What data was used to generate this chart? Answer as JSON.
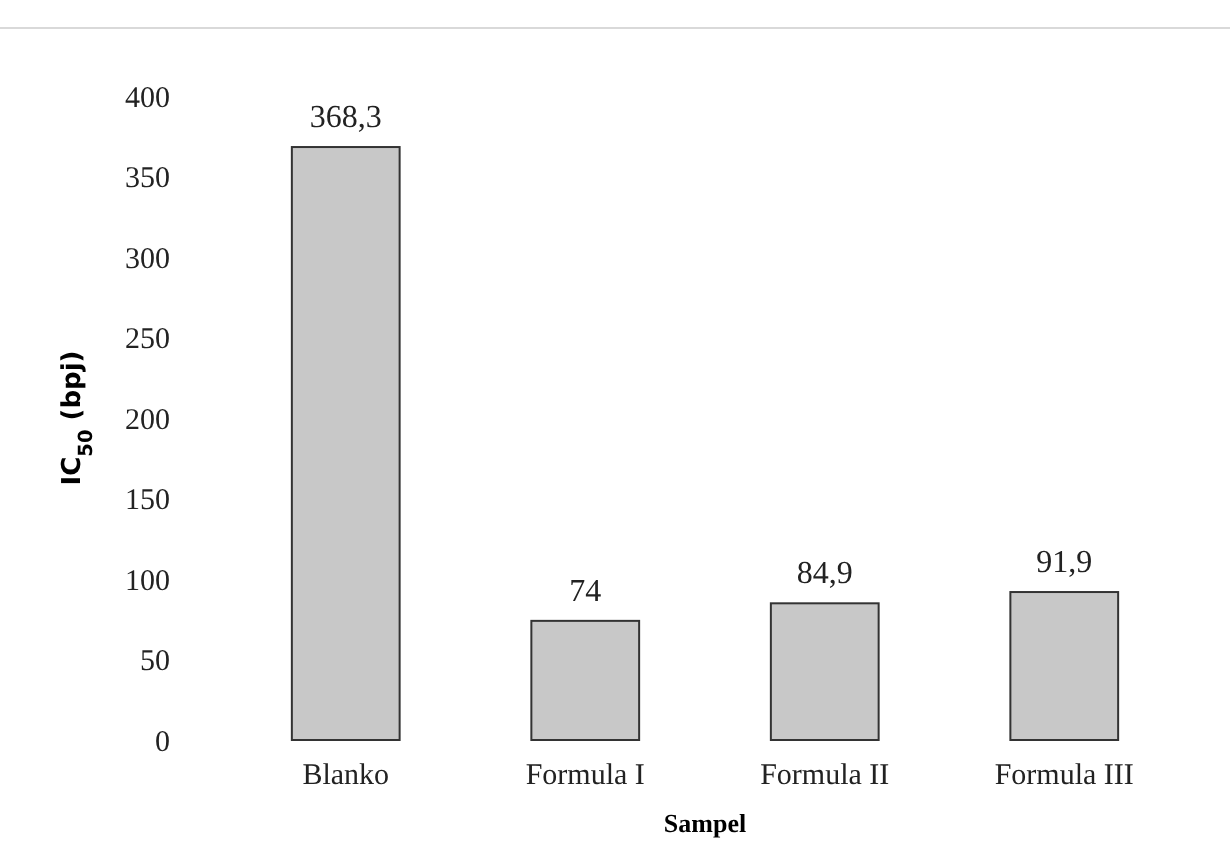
{
  "chart_data": {
    "type": "bar",
    "categories": [
      "Blanko",
      "Formula I",
      "Formula II",
      "Formula III"
    ],
    "values": [
      368.3,
      74,
      84.9,
      91.9
    ],
    "value_labels": [
      "368,3",
      "74",
      "84,9",
      "91,9"
    ],
    "color": "#c8c8c8",
    "ylim": [
      0,
      400
    ],
    "yticks": [
      0,
      50,
      100,
      150,
      200,
      250,
      300,
      350,
      400
    ],
    "xlabel": "Sampel",
    "ylabel": "IC$_{50}$ (bpj)",
    "grid": false
  }
}
